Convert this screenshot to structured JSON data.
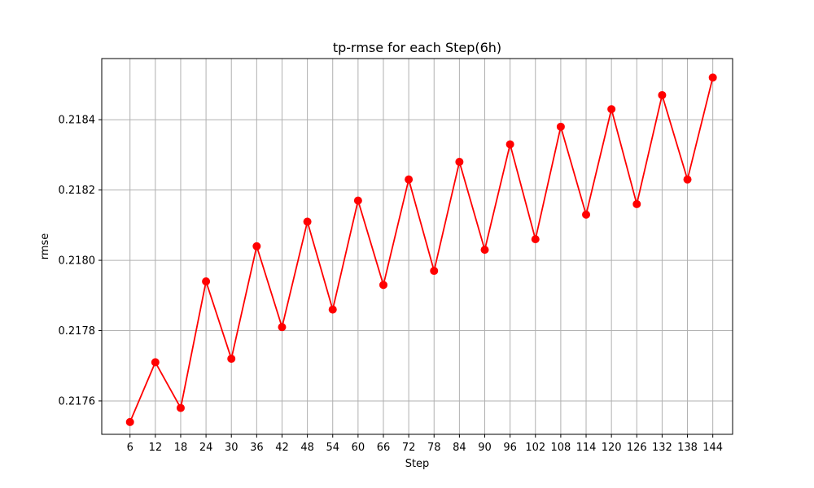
{
  "chart_data": {
    "type": "line",
    "title": "tp-rmse for each Step(6h)",
    "xlabel": "Step",
    "ylabel": "rmse",
    "x": [
      6,
      12,
      18,
      24,
      30,
      36,
      42,
      48,
      54,
      60,
      66,
      72,
      78,
      84,
      90,
      96,
      102,
      108,
      114,
      120,
      126,
      132,
      138,
      144
    ],
    "series": [
      {
        "values": [
          0.21754,
          0.21771,
          0.21758,
          0.21794,
          0.21772,
          0.21804,
          0.21781,
          0.21811,
          0.21786,
          0.21817,
          0.21793,
          0.21823,
          0.21797,
          0.21828,
          0.21803,
          0.21833,
          0.21806,
          0.21838,
          0.21813,
          0.21843,
          0.21816,
          0.21847,
          0.21823,
          0.21852
        ],
        "color": "#ff0000",
        "marker": "circle"
      }
    ],
    "yticks": [
      0.2176,
      0.2178,
      0.218,
      0.2182,
      0.2184
    ],
    "ytick_labels": [
      "0.2176",
      "0.2178",
      "0.2180",
      "0.2182",
      "0.2184"
    ],
    "xticks": [
      6,
      12,
      18,
      24,
      30,
      36,
      42,
      48,
      54,
      60,
      66,
      72,
      78,
      84,
      90,
      96,
      102,
      108,
      114,
      120,
      126,
      132,
      138,
      144
    ],
    "ylim": [
      0.217505,
      0.218574
    ],
    "xlim": [
      -0.69,
      148.69
    ],
    "grid": true,
    "legend": "none"
  }
}
